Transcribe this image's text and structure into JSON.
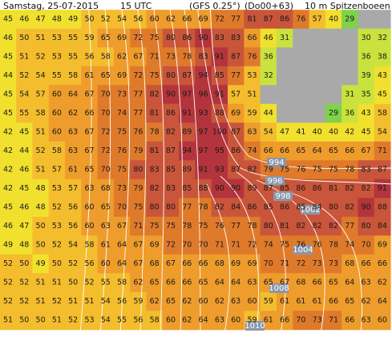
{
  "header": {
    "date": "Samstag, 25-07-2015",
    "time": "15 UTC",
    "model": "(GFS 0.25°)",
    "run": "(Do00+63)",
    "field": "10 m Spitzenboeen"
  },
  "grid": {
    "rows": [
      [
        45,
        46,
        47,
        48,
        49,
        50,
        52,
        54,
        56,
        60,
        62,
        66,
        69,
        72,
        77,
        81,
        87,
        86,
        76,
        57,
        40,
        29,
        null,
        null
      ],
      [
        46,
        50,
        51,
        53,
        55,
        59,
        65,
        69,
        72,
        75,
        80,
        86,
        90,
        83,
        83,
        66,
        46,
        31,
        null,
        null,
        null,
        null,
        30,
        32
      ],
      [
        45,
        51,
        52,
        53,
        55,
        56,
        58,
        62,
        67,
        71,
        73,
        78,
        83,
        91,
        87,
        76,
        36,
        null,
        null,
        null,
        null,
        null,
        36,
        38
      ],
      [
        44,
        52,
        54,
        55,
        58,
        61,
        65,
        69,
        72,
        75,
        80,
        87,
        94,
        85,
        77,
        53,
        32,
        null,
        null,
        null,
        null,
        null,
        39,
        43
      ],
      [
        45,
        54,
        57,
        60,
        64,
        67,
        70,
        73,
        77,
        82,
        90,
        97,
        96,
        91,
        57,
        51,
        null,
        null,
        null,
        null,
        null,
        31,
        35,
        45
      ],
      [
        45,
        55,
        58,
        60,
        62,
        66,
        70,
        74,
        77,
        81,
        86,
        91,
        93,
        88,
        69,
        59,
        44,
        null,
        null,
        null,
        29,
        36,
        43,
        58
      ],
      [
        42,
        45,
        51,
        60,
        63,
        67,
        72,
        75,
        76,
        78,
        82,
        89,
        97,
        100,
        87,
        63,
        54,
        47,
        41,
        40,
        40,
        42,
        45,
        54
      ],
      [
        42,
        44,
        52,
        58,
        63,
        67,
        72,
        76,
        79,
        81,
        87,
        94,
        97,
        95,
        86,
        74,
        66,
        66,
        65,
        64,
        65,
        66,
        67,
        71
      ],
      [
        42,
        46,
        51,
        57,
        61,
        65,
        70,
        75,
        80,
        83,
        85,
        89,
        91,
        93,
        87,
        82,
        79,
        75,
        76,
        75,
        75,
        78,
        83,
        87
      ],
      [
        42,
        45,
        48,
        53,
        57,
        63,
        68,
        73,
        79,
        82,
        83,
        85,
        88,
        90,
        90,
        89,
        87,
        85,
        86,
        86,
        81,
        82,
        82,
        91
      ],
      [
        45,
        46,
        48,
        52,
        56,
        60,
        65,
        70,
        75,
        80,
        80,
        77,
        78,
        82,
        84,
        86,
        85,
        86,
        85,
        84,
        80,
        82,
        90,
        88
      ],
      [
        46,
        47,
        50,
        53,
        56,
        60,
        63,
        67,
        71,
        75,
        75,
        78,
        75,
        76,
        77,
        78,
        80,
        81,
        82,
        82,
        82,
        77,
        80,
        84
      ],
      [
        49,
        48,
        50,
        52,
        54,
        58,
        61,
        64,
        67,
        69,
        72,
        70,
        70,
        71,
        71,
        72,
        74,
        75,
        76,
        76,
        78,
        74,
        70,
        69
      ],
      [
        52,
        50,
        49,
        50,
        52,
        56,
        60,
        64,
        67,
        68,
        67,
        66,
        66,
        68,
        69,
        69,
        70,
        71,
        72,
        73,
        73,
        68,
        66,
        66
      ],
      [
        52,
        52,
        51,
        51,
        50,
        52,
        55,
        58,
        62,
        65,
        66,
        66,
        65,
        64,
        64,
        63,
        65,
        67,
        68,
        66,
        65,
        64,
        63,
        62
      ],
      [
        52,
        52,
        51,
        52,
        51,
        51,
        54,
        56,
        59,
        62,
        65,
        62,
        60,
        62,
        63,
        60,
        59,
        61,
        61,
        61,
        66,
        65,
        62,
        64
      ],
      [
        51,
        50,
        50,
        51,
        52,
        53,
        54,
        55,
        56,
        58,
        60,
        62,
        64,
        63,
        60,
        59,
        61,
        66,
        70,
        73,
        71,
        66,
        63,
        60
      ]
    ]
  },
  "isobars": {
    "labels": [
      "994",
      "996",
      "998",
      "1002",
      "1004",
      "1008",
      "1010"
    ]
  }
}
